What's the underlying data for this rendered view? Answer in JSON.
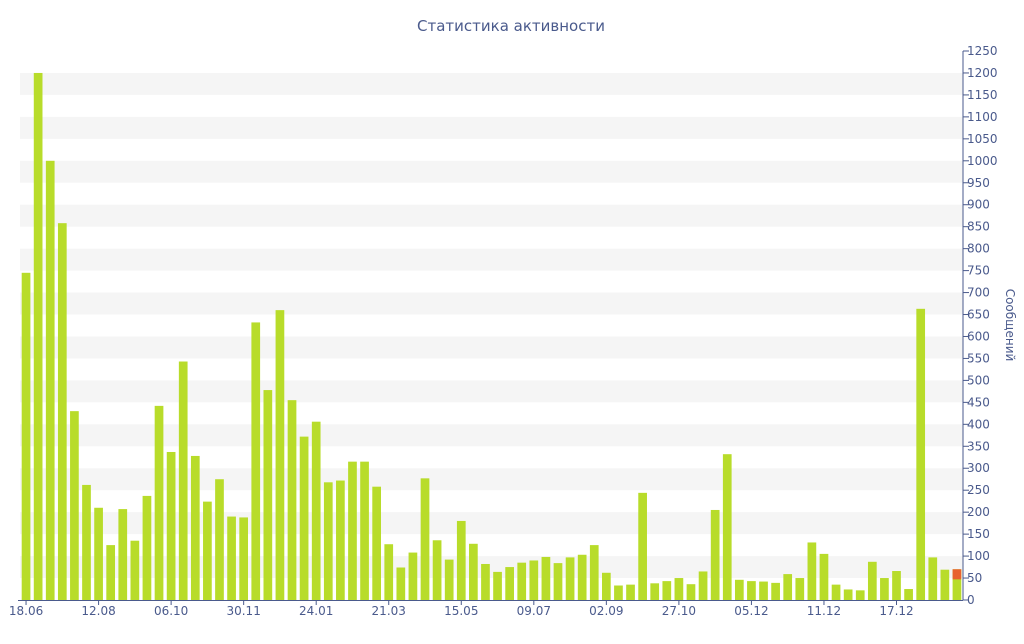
{
  "chart_data": {
    "type": "bar",
    "title": "Статистика активности",
    "ylabel": "Сообщений",
    "xlabel": "",
    "ylim": [
      0,
      1250
    ],
    "y_ticks": [
      0,
      50,
      100,
      150,
      200,
      250,
      300,
      350,
      400,
      450,
      500,
      550,
      600,
      650,
      700,
      750,
      800,
      850,
      900,
      950,
      1000,
      1050,
      1100,
      1150,
      1200,
      1250
    ],
    "y_axis_side": "right",
    "x_tick_labels": [
      {
        "index": 0,
        "label": "18.06"
      },
      {
        "index": 6,
        "label": "12.08"
      },
      {
        "index": 12,
        "label": "06.10"
      },
      {
        "index": 18,
        "label": "30.11"
      },
      {
        "index": 24,
        "label": "24.01"
      },
      {
        "index": 30,
        "label": "21.03"
      },
      {
        "index": 36,
        "label": "15.05"
      },
      {
        "index": 42,
        "label": "09.07"
      },
      {
        "index": 48,
        "label": "02.09"
      },
      {
        "index": 54,
        "label": "27.10"
      },
      {
        "index": 60,
        "label": "05.12"
      },
      {
        "index": 66,
        "label": "11.12"
      },
      {
        "index": 72,
        "label": "17.12"
      }
    ],
    "grid": "horizontal alternating bands",
    "colors": {
      "bar": "#b8dc2a",
      "highlight_top": "#e8622f",
      "axis": "#4a5a8c",
      "band": "#f5f5f5"
    },
    "values": [
      745,
      1200,
      1000,
      858,
      430,
      262,
      210,
      125,
      207,
      135,
      237,
      442,
      337,
      543,
      328,
      224,
      275,
      190,
      188,
      632,
      478,
      660,
      455,
      372,
      406,
      268,
      272,
      315,
      315,
      258,
      127,
      74,
      108,
      277,
      136,
      92,
      180,
      128,
      82,
      64,
      75,
      85,
      90,
      98,
      84,
      97,
      103,
      125,
      62,
      33,
      35,
      244,
      38,
      43,
      50,
      36,
      65,
      205,
      332,
      46,
      43,
      42,
      39,
      59,
      50,
      131,
      105,
      35,
      24,
      22,
      87,
      50,
      66,
      25,
      663,
      97,
      69,
      70
    ],
    "highlight": {
      "index": 77,
      "base": 47,
      "top": 70
    }
  }
}
